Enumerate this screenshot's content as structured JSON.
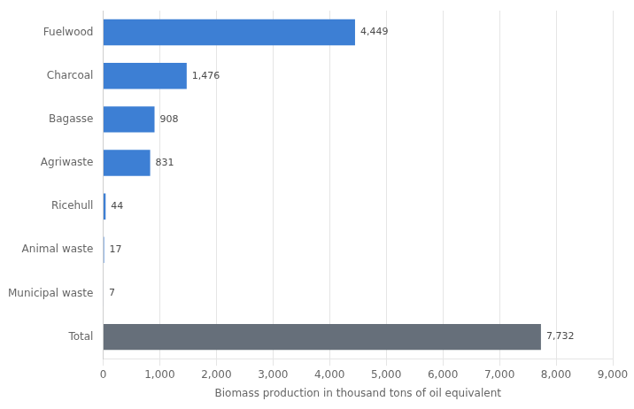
{
  "chart_data": {
    "type": "bar",
    "orientation": "horizontal",
    "categories": [
      "Total",
      "Municipal waste",
      "Animal waste",
      "Ricehull",
      "Agriwaste",
      "Bagasse",
      "Charcoal",
      "Fuelwood"
    ],
    "values": [
      7732,
      7,
      17,
      44,
      831,
      908,
      1476,
      4449
    ],
    "value_labels": [
      "7,732",
      "7",
      "17",
      "44",
      "831",
      "908",
      "1,476",
      "4,449"
    ],
    "data_labels": true,
    "colors": [
      "#666f7a",
      "#3d7fd4",
      "#3d7fd4",
      "#3d7fd4",
      "#3d7fd4",
      "#3d7fd4",
      "#3d7fd4",
      "#3d7fd4"
    ],
    "xlabel": "Biomass production in thousand tons of oil equivalent",
    "xlim": [
      0,
      9000
    ],
    "xticks": [
      0,
      {
        "value": 1000,
        "label": "1,000"
      },
      {
        "value": 2000,
        "label": "2,000"
      },
      {
        "value": 3000,
        "label": "3,000"
      },
      {
        "value": 4000,
        "label": "4,000"
      },
      {
        "value": 5000,
        "label": "5,000"
      },
      {
        "value": 6000,
        "label": "6,000"
      },
      {
        "value": 7000,
        "label": "7,000"
      },
      {
        "value": 8000,
        "label": "8,000"
      },
      {
        "value": 9000,
        "label": "9,000"
      }
    ],
    "grid": true
  }
}
